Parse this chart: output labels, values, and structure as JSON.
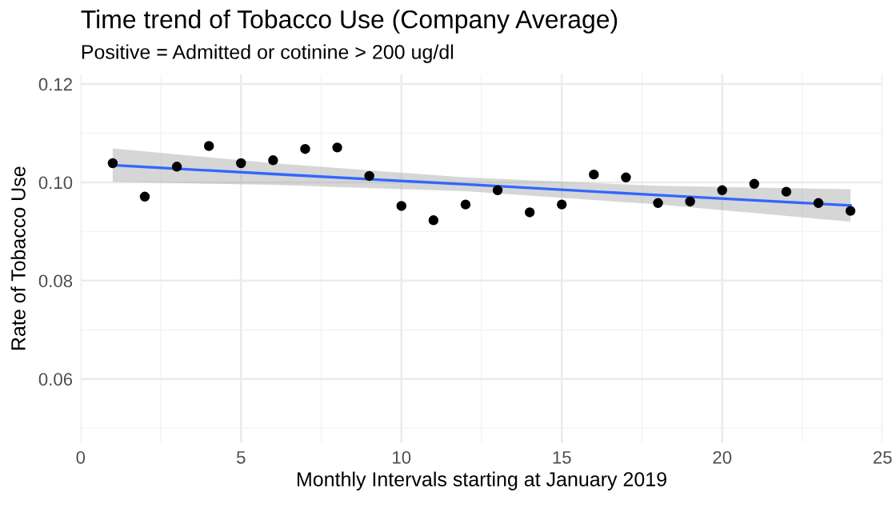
{
  "chart_data": {
    "type": "scatter",
    "title": "Time trend of Tobacco Use (Company Average)",
    "subtitle": "Positive = Admitted or cotinine > 200 ug/dl",
    "xlabel": "Monthly Intervals starting at January 2019",
    "ylabel": "Rate of Tobacco Use",
    "series": [
      {
        "marker": "circle",
        "color": "#000000",
        "x": [
          1,
          2,
          3,
          4,
          5,
          6,
          7,
          8,
          9,
          10,
          11,
          12,
          13,
          14,
          15,
          16,
          17,
          18,
          19,
          20,
          21,
          22,
          23,
          24
        ],
        "values": [
          0.1039,
          0.0971,
          0.1032,
          0.1074,
          0.1039,
          0.1045,
          0.1068,
          0.1071,
          0.1013,
          0.0952,
          0.0923,
          0.0955,
          0.0984,
          0.0939,
          0.0955,
          0.1016,
          0.101,
          0.0958,
          0.0961,
          0.0984,
          0.0997,
          0.0981,
          0.0958,
          0.0942
        ]
      },
      {
        "type": "line",
        "marker": "none",
        "color": "#3366ff",
        "x": [
          1,
          6,
          12,
          18,
          24
        ],
        "values": [
          0.1035,
          0.1017,
          0.0996,
          0.0974,
          0.0953
        ],
        "lower": [
          0.1001,
          0.0995,
          0.0982,
          0.0955,
          0.092
        ],
        "upper": [
          0.1069,
          0.1039,
          0.101,
          0.0993,
          0.0986
        ]
      }
    ],
    "xlim": [
      0,
      25
    ],
    "xticks": [
      0,
      5,
      10,
      15,
      20,
      25
    ],
    "ylim": [
      0.047,
      0.122
    ],
    "yticks": [
      {
        "value": 0.06,
        "label": "0.06"
      },
      {
        "value": 0.08,
        "label": "0.08"
      },
      {
        "value": 0.1,
        "label": "0.10"
      },
      {
        "value": 0.12,
        "label": "0.12"
      }
    ],
    "grid": true
  }
}
